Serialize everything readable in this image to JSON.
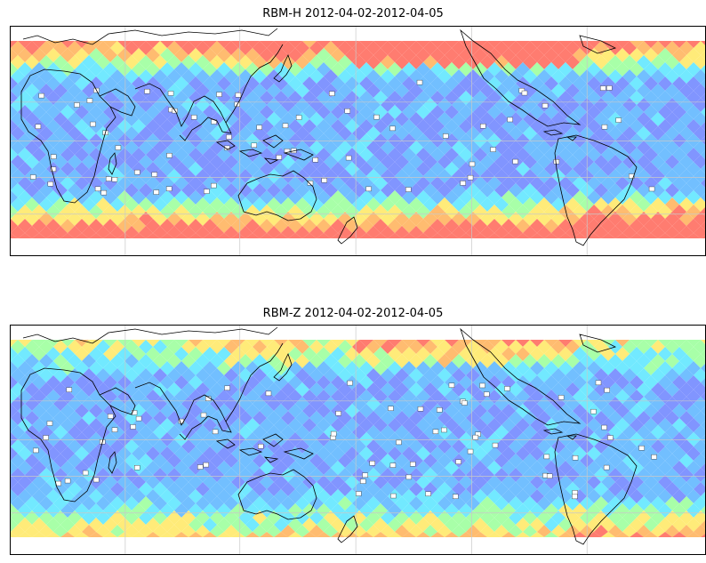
{
  "figure": {
    "panels": [
      {
        "title": "RBM-H 2012-04-02-2012-04-05",
        "seed": 7,
        "high_lat_strength": 1.0
      },
      {
        "title": "RBM-Z 2012-04-02-2012-04-05",
        "seed": 13,
        "high_lat_strength": 0.55
      }
    ],
    "colormap": [
      "#6a6aff",
      "#6f86ff",
      "#5fb6ff",
      "#5fe6ff",
      "#9cff9c",
      "#ffe866",
      "#ffb35c",
      "#ff6a5c"
    ],
    "coastline_color": "#000000",
    "grid_color": "#c8c8c8"
  }
}
